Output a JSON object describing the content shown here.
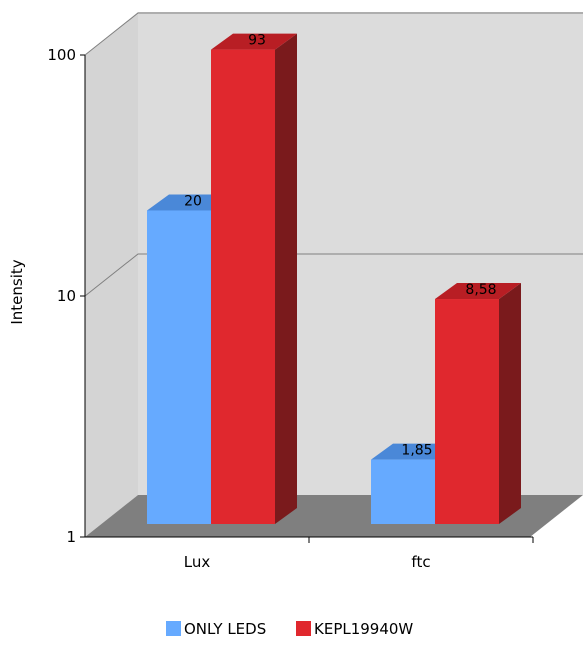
{
  "chart_data": {
    "type": "bar",
    "style": "3d",
    "scale": "log",
    "ylabel": "Intensity",
    "xlabel": "",
    "ylim": [
      1,
      100
    ],
    "y_ticks": [
      "1",
      "10",
      "100"
    ],
    "categories": [
      "Lux",
      "ftc"
    ],
    "series": [
      {
        "name": "ONLY LEDS",
        "values": [
          20,
          1.85
        ],
        "labels": [
          "20",
          "1,85"
        ]
      },
      {
        "name": "KEPL19940W",
        "values": [
          93,
          8.58
        ],
        "labels": [
          "93",
          "8,58"
        ]
      }
    ],
    "legend_position": "bottom",
    "grid": true,
    "colors": {
      "series": [
        "#66AAFF",
        "#E0282E"
      ],
      "series_top": [
        "#4A88D8",
        "#B81E24"
      ],
      "series_side": [
        "#3F76BC",
        "#7A1A1C"
      ],
      "back_wall": "#DCDCDC",
      "side_wall": "#D4D4D4",
      "floor": "#7F7F7F",
      "gridline": "#808080"
    }
  }
}
